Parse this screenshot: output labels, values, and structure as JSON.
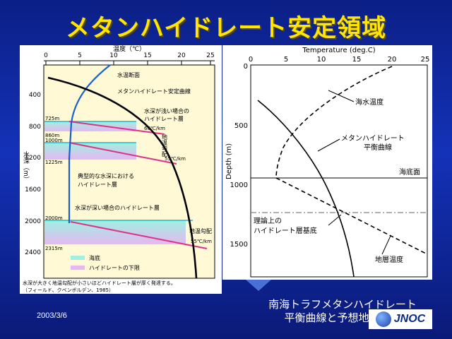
{
  "slide": {
    "title": "メタンハイドレート安定領域",
    "date": "2003/3/6",
    "caption_line1": "南海トラフメタンハイドレート",
    "caption_line2": "平衡曲線と予想地層温度",
    "logo_text": "JNOC"
  },
  "left_chart": {
    "x_title": "温度（℃）",
    "x_ticks": [
      "0",
      "5",
      "10",
      "15",
      "20",
      "25"
    ],
    "y_title": "水深（m）",
    "y_ticks": [
      "400",
      "800",
      "1200",
      "1600",
      "2000",
      "2400"
    ],
    "labels": {
      "sea_temp": "水温断面",
      "stability": "メタンハイドレート安定曲線",
      "shallow1": "水深が浅い場合の",
      "shallow2": "ハイドレート層",
      "grad66": "66℃/km",
      "geograd_v": "地温勾配",
      "grad55a": "55℃/km",
      "typical1": "典型的な水深における",
      "typical2": "ハイドレート層",
      "deep": "水深が深い場合のハイドレート層",
      "geograd_h": "地温勾配",
      "grad55b": "55℃/km"
    },
    "depth_labels": [
      "725m",
      "860m",
      "1000m",
      "1225m",
      "2000m",
      "2315m"
    ],
    "legend": {
      "seafloor": "海底",
      "base": "ハイドレートの下限"
    },
    "note": "水深が大きく地温勾配が小さいほどハイドレート層が厚く発達する。",
    "source": "（フィールド、クベンボルデン、1985）"
  },
  "right_chart": {
    "x_title": "Temperature (deg.C)",
    "x_ticks": [
      "0",
      "5",
      "10",
      "15",
      "20",
      "25"
    ],
    "y_title": "Depth (m)",
    "y_ticks": [
      "0",
      "500",
      "1000",
      "1500"
    ],
    "labels": {
      "seawater_temp": "海水温度",
      "equil1": "メタンハイドレート",
      "equil2": "平衡曲線",
      "seafloor": "海底面",
      "theory1": "理論上の",
      "theory2": "ハイドレート層基底",
      "formation_temp": "地層温度"
    }
  }
}
